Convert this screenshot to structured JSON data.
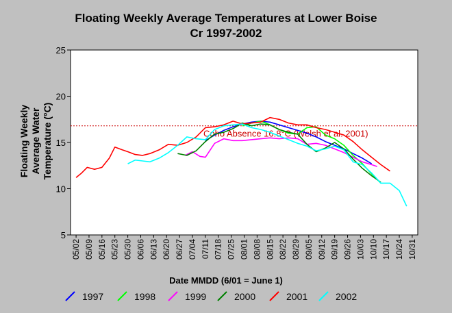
{
  "chart_data": {
    "type": "line",
    "title_lines": [
      "Floating Weekly Average Temperatures at Lower Boise",
      "Cr 1997-2002"
    ],
    "ylabel_lines": [
      "Floating Weekly",
      "Average Water",
      "Temperature (°C)"
    ],
    "xlabel": "Date MMDD (6/01 = June 1)",
    "ylim": [
      5,
      25
    ],
    "yticks": [
      5,
      10,
      15,
      20,
      25
    ],
    "xticks": [
      "05/02",
      "05/09",
      "05/16",
      "05/23",
      "05/30",
      "06/06",
      "06/13",
      "06/20",
      "06/27",
      "07/04",
      "07/11",
      "07/18",
      "07/25",
      "08/01",
      "08/08",
      "08/15",
      "08/22",
      "08/29",
      "09/05",
      "09/12",
      "09/19",
      "09/26",
      "10/03",
      "10/10",
      "10/17",
      "10/24",
      "10/31"
    ],
    "x_axis_unit": "days since 05/02",
    "xlim": [
      -3,
      185
    ],
    "grid": false,
    "legend_position": "bottom",
    "reference_line": {
      "y": 16.8,
      "label": "Coho Absence 16.8°C (Welsh et al. 2001)",
      "color": "#cc0000",
      "style": "dotted"
    },
    "series": [
      {
        "name": "1997",
        "color": "#0000ff",
        "x": [
          70,
          75,
          80,
          85,
          90,
          95,
          100,
          105,
          110,
          115,
          120,
          125,
          130,
          135,
          140,
          145,
          150,
          155,
          160
        ],
        "y": [
          15.2,
          15.8,
          16.3,
          16.7,
          17.0,
          17.2,
          17.3,
          17.2,
          16.9,
          16.6,
          16.3,
          16.0,
          15.6,
          15.1,
          14.7,
          14.3,
          13.8,
          13.3,
          12.7
        ]
      },
      {
        "name": "1998",
        "color": "#00ff00",
        "x": [
          90,
          95,
          100,
          105,
          110,
          115,
          120,
          125,
          130,
          135,
          140,
          145,
          150,
          155,
          160,
          165
        ],
        "y": [
          16.8,
          17.1,
          17.3,
          16.9,
          16.4,
          16.0,
          15.9,
          16.6,
          16.7,
          15.8,
          15.4,
          14.7,
          13.6,
          12.7,
          11.6,
          10.6
        ]
      },
      {
        "name": "1999",
        "color": "#ff00ff",
        "x": [
          59,
          63,
          67,
          70,
          75,
          80,
          85,
          90,
          95,
          100,
          105,
          110,
          115,
          120,
          125,
          130,
          135,
          140,
          145,
          150,
          155,
          160,
          163
        ],
        "y": [
          13.6,
          14.0,
          13.5,
          13.4,
          14.9,
          15.4,
          15.2,
          15.2,
          15.3,
          15.4,
          15.5,
          15.4,
          15.5,
          15.4,
          14.8,
          14.9,
          14.7,
          14.3,
          13.9,
          13.4,
          12.9,
          12.6,
          12.4
        ]
      },
      {
        "name": "2000",
        "color": "#008000",
        "x": [
          55,
          60,
          65,
          70,
          75,
          80,
          85,
          90,
          95,
          100,
          105,
          110,
          115,
          120,
          125,
          130,
          135,
          140,
          145,
          150,
          155,
          160,
          165
        ],
        "y": [
          13.8,
          13.6,
          14.1,
          15.1,
          15.9,
          16.1,
          16.5,
          17.1,
          16.8,
          17.0,
          16.9,
          16.4,
          16.1,
          15.9,
          14.8,
          14.0,
          14.4,
          15.0,
          14.3,
          13.2,
          12.2,
          11.4,
          10.7
        ]
      },
      {
        "name": "2001",
        "color": "#ff0000",
        "x": [
          0,
          3,
          6,
          10,
          14,
          18,
          21,
          25,
          28,
          32,
          36,
          40,
          45,
          50,
          55,
          60,
          65,
          70,
          75,
          80,
          85,
          90,
          95,
          100,
          105,
          110,
          115,
          120,
          125,
          130,
          135,
          140,
          145,
          150,
          155,
          160,
          165,
          170
        ],
        "y": [
          11.2,
          11.7,
          12.3,
          12.1,
          12.3,
          13.3,
          14.5,
          14.2,
          14.0,
          13.7,
          13.6,
          13.8,
          14.2,
          14.8,
          14.7,
          15.0,
          15.6,
          16.6,
          16.7,
          16.9,
          17.3,
          17.0,
          17.1,
          17.2,
          17.7,
          17.5,
          17.1,
          16.9,
          16.9,
          16.6,
          16.4,
          16.1,
          15.8,
          15.1,
          14.2,
          13.4,
          12.6,
          11.9
        ]
      },
      {
        "name": "2002",
        "color": "#00ffff",
        "x": [
          28,
          32,
          36,
          40,
          45,
          50,
          55,
          60,
          65,
          70,
          75,
          80,
          85,
          90,
          95,
          100,
          105,
          110,
          115,
          120,
          125,
          130,
          135,
          140,
          145,
          150,
          155,
          160,
          165,
          170,
          175,
          179
        ],
        "y": [
          12.7,
          13.1,
          13.0,
          12.9,
          13.3,
          13.9,
          14.7,
          15.6,
          15.4,
          15.3,
          16.4,
          16.8,
          16.9,
          17.0,
          16.6,
          16.4,
          16.1,
          15.7,
          15.3,
          14.9,
          14.6,
          14.1,
          14.3,
          14.6,
          14.2,
          12.9,
          12.6,
          11.7,
          10.6,
          10.6,
          9.8,
          8.1
        ]
      }
    ]
  }
}
